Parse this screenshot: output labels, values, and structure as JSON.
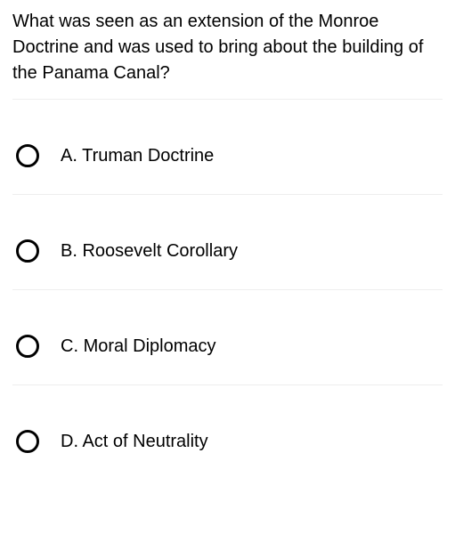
{
  "question": {
    "text": "What was seen as an extension of the Monroe Doctrine and was used to bring about the building of the Panama Canal?",
    "fontsize": 20,
    "color": "#000000"
  },
  "options": [
    {
      "letter": "A.",
      "label": "Truman Doctrine"
    },
    {
      "letter": "B.",
      "label": "Roosevelt Corollary"
    },
    {
      "letter": "C.",
      "label": "Moral Diplomacy"
    },
    {
      "letter": "D.",
      "label": "Act of Neutrality"
    }
  ],
  "styling": {
    "background_color": "#ffffff",
    "divider_color": "#eeeeee",
    "radio_border_color": "#000000",
    "radio_border_width": 3,
    "radio_diameter": 26,
    "option_fontsize": 20,
    "option_text_color": "#000000"
  }
}
